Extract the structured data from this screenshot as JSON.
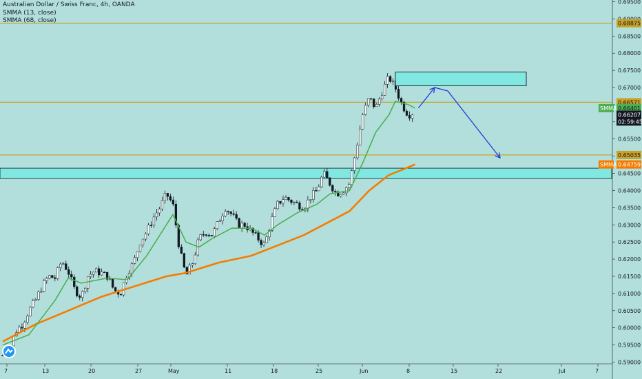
{
  "header": {
    "title": "Australian Dollar / Swiss Franc, 4h, OANDA",
    "indicator_1": "SMMA (13, close)",
    "indicator_2": "SMMA (68, close)"
  },
  "colors": {
    "background": "#b2dfdb",
    "candle": "#131722",
    "smma_fast": "#4caf50",
    "smma_slow": "#f57c00",
    "horizontal_level": "#c9a227",
    "zone_fill": "#80e8e0",
    "zone_stroke": "#131722",
    "arrow": "#1a3fd6",
    "price_tag_dark": "#131722"
  },
  "chart_data": {
    "type": "candlestick",
    "symbol": "Australian Dollar / Swiss Franc, 4h, OANDA",
    "ylim": [
      0.5895,
      0.6955
    ],
    "y_ticks": [
      "0.69500",
      "0.69000",
      "0.68500",
      "0.68000",
      "0.67500",
      "0.67000",
      "0.66500",
      "0.66000",
      "0.65500",
      "0.65000",
      "0.64500",
      "0.64000",
      "0.63500",
      "0.63000",
      "0.62500",
      "0.62000",
      "0.61500",
      "0.61000",
      "0.60500",
      "0.60000",
      "0.59500",
      "0.59000"
    ],
    "x_ticks": [
      "7",
      "13",
      "20",
      "27",
      "May",
      "11",
      "18",
      "25",
      "Jun",
      "8",
      "15",
      "22",
      "Jul",
      "7"
    ],
    "price_path": [
      [
        0,
        0.592
      ],
      [
        1,
        0.5935
      ],
      [
        2,
        0.599
      ],
      [
        3,
        0.601
      ],
      [
        4,
        0.605
      ],
      [
        5,
        0.608
      ],
      [
        6,
        0.612
      ],
      [
        7,
        0.615
      ],
      [
        8,
        0.6145
      ],
      [
        9,
        0.6195
      ],
      [
        10,
        0.6165
      ],
      [
        11,
        0.611
      ],
      [
        12,
        0.609
      ],
      [
        13,
        0.615
      ],
      [
        14,
        0.6165
      ],
      [
        15,
        0.616
      ],
      [
        16,
        0.615
      ],
      [
        17,
        0.611
      ],
      [
        18,
        0.61
      ],
      [
        19,
        0.616
      ],
      [
        20,
        0.619
      ],
      [
        21,
        0.625
      ],
      [
        22,
        0.628
      ],
      [
        23,
        0.632
      ],
      [
        24,
        0.635
      ],
      [
        25,
        0.639
      ],
      [
        26,
        0.636
      ],
      [
        27,
        0.623
      ],
      [
        28,
        0.615
      ],
      [
        29,
        0.619
      ],
      [
        30,
        0.626
      ],
      [
        31,
        0.628
      ],
      [
        32,
        0.627
      ],
      [
        33,
        0.631
      ],
      [
        34,
        0.635
      ],
      [
        35,
        0.633
      ],
      [
        36,
        0.63
      ],
      [
        37,
        0.63
      ],
      [
        38,
        0.628
      ],
      [
        39,
        0.626
      ],
      [
        40,
        0.624
      ],
      [
        41,
        0.631
      ],
      [
        42,
        0.636
      ],
      [
        43,
        0.638
      ],
      [
        44,
        0.637
      ],
      [
        45,
        0.636
      ],
      [
        46,
        0.635
      ],
      [
        47,
        0.638
      ],
      [
        48,
        0.64
      ],
      [
        49,
        0.645
      ],
      [
        50,
        0.642
      ],
      [
        51,
        0.639
      ],
      [
        52,
        0.64
      ],
      [
        53,
        0.642
      ],
      [
        54,
        0.652
      ],
      [
        55,
        0.662
      ],
      [
        56,
        0.667
      ],
      [
        57,
        0.664
      ],
      [
        58,
        0.669
      ],
      [
        59,
        0.673
      ],
      [
        60,
        0.67
      ],
      [
        61,
        0.665
      ],
      [
        62,
        0.662
      ],
      [
        63,
        0.663
      ]
    ],
    "smma_13": [
      [
        0,
        0.595
      ],
      [
        4,
        0.598
      ],
      [
        8,
        0.608
      ],
      [
        10,
        0.6145
      ],
      [
        12,
        0.613
      ],
      [
        16,
        0.6145
      ],
      [
        19,
        0.614
      ],
      [
        22,
        0.621
      ],
      [
        25,
        0.63
      ],
      [
        26,
        0.633
      ],
      [
        28,
        0.625
      ],
      [
        30,
        0.6235
      ],
      [
        32,
        0.626
      ],
      [
        35,
        0.629
      ],
      [
        38,
        0.629
      ],
      [
        40,
        0.627
      ],
      [
        42,
        0.63
      ],
      [
        45,
        0.6335
      ],
      [
        48,
        0.636
      ],
      [
        50,
        0.639
      ],
      [
        53,
        0.64
      ],
      [
        55,
        0.648
      ],
      [
        57,
        0.657
      ],
      [
        59,
        0.662
      ],
      [
        60,
        0.666
      ],
      [
        62,
        0.665
      ],
      [
        63,
        0.664
      ]
    ],
    "smma_68": [
      [
        0,
        0.596
      ],
      [
        5,
        0.601
      ],
      [
        10,
        0.605
      ],
      [
        15,
        0.609
      ],
      [
        20,
        0.612
      ],
      [
        25,
        0.615
      ],
      [
        28,
        0.616
      ],
      [
        33,
        0.619
      ],
      [
        38,
        0.621
      ],
      [
        42,
        0.624
      ],
      [
        46,
        0.627
      ],
      [
        50,
        0.631
      ],
      [
        53,
        0.634
      ],
      [
        56,
        0.64
      ],
      [
        59,
        0.6445
      ],
      [
        61,
        0.646
      ],
      [
        63,
        0.6476
      ]
    ],
    "horizontal_levels": [
      0.68875,
      0.66571,
      0.65035
    ],
    "zones": [
      {
        "label": "target zone",
        "y_top": 0.6745,
        "y_bottom": 0.6705,
        "x_start": 60.0,
        "x_end": 80.0
      },
      {
        "label": "support zone",
        "y_top": 0.6465,
        "y_bottom": 0.6435,
        "x_start": -2,
        "x_end": 999
      }
    ],
    "projection": [
      [
        63.5,
        0.664
      ],
      [
        66.0,
        0.67
      ],
      [
        68.0,
        0.669
      ],
      [
        76.0,
        0.6495
      ]
    ],
    "price_labels": [
      {
        "text": "0.68875",
        "value": 0.68875,
        "style": "level"
      },
      {
        "text": "0.66571",
        "value": 0.66571,
        "style": "level"
      },
      {
        "text": "SMMA",
        "value": 0.66401,
        "style": "smma_fast_tag"
      },
      {
        "text": "0.66401",
        "value": 0.66401,
        "style": "smma_fast"
      },
      {
        "text": "0.66207",
        "value": 0.66207,
        "style": "dark"
      },
      {
        "text": "02:59:45",
        "value": 0.6601,
        "style": "dark"
      },
      {
        "text": "0.65035",
        "value": 0.65035,
        "style": "level"
      },
      {
        "text": "SMMA",
        "value": 0.64759,
        "style": "smma_slow_tag"
      },
      {
        "text": "0.64759",
        "value": 0.64759,
        "style": "smma_slow"
      }
    ]
  }
}
